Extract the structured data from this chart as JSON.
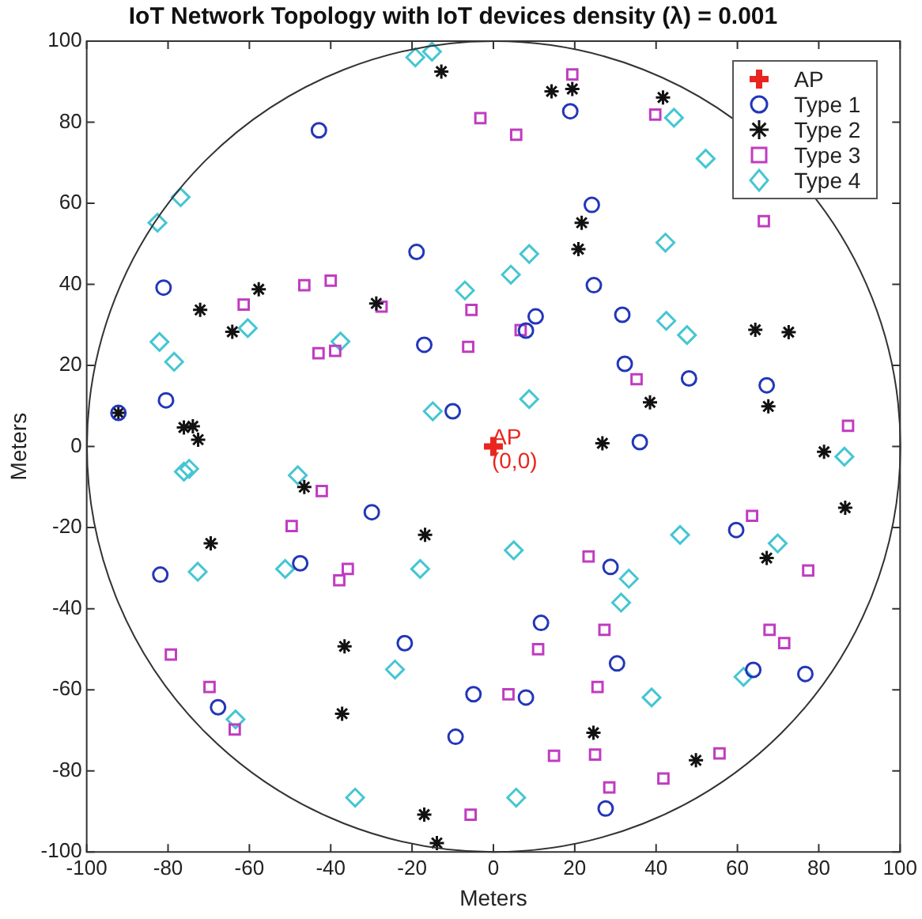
{
  "chart_data": {
    "type": "scatter",
    "title": "IoT Network Topology with IoT devices density (λ) = 0.001",
    "xlabel": "Meters",
    "ylabel": "Meters",
    "xlim": [
      -100,
      100
    ],
    "ylim": [
      -100,
      100
    ],
    "xticks": [
      -100,
      -80,
      -60,
      -40,
      -20,
      0,
      20,
      40,
      60,
      80,
      100
    ],
    "yticks": [
      -100,
      -80,
      -60,
      -40,
      -20,
      0,
      20,
      40,
      60,
      80,
      100
    ],
    "grid": false,
    "legend": "top right",
    "annotations": [
      {
        "text": "AP\n(0,0)",
        "x": 0,
        "y": 0
      }
    ],
    "series": [
      {
        "name": "AP",
        "color": "#e8261f",
        "marker": "cross",
        "x": [
          0
        ],
        "values": [
          0
        ]
      },
      {
        "name": "Type 1",
        "color": "#2336b8",
        "marker": "circle",
        "x": [
          -42.9,
          -18.9,
          -81.1,
          -17.0,
          -80.5,
          -10.0,
          -92.2,
          18.9,
          24.2,
          24.7,
          10.4,
          8.0,
          31.7,
          32.3,
          48.1,
          67.2,
          36.0,
          -29.9,
          -47.5,
          -81.9,
          -21.8,
          -4.9,
          -9.3,
          -67.7,
          59.7,
          28.8,
          11.7,
          30.4,
          63.9,
          76.7,
          8.0,
          27.6
        ],
        "values": [
          78.0,
          48.0,
          39.2,
          25.1,
          11.4,
          8.7,
          8.3,
          82.7,
          59.6,
          39.8,
          32.1,
          28.6,
          32.5,
          20.4,
          16.8,
          15.1,
          1.1,
          -16.2,
          -28.8,
          -31.6,
          -48.5,
          -61.1,
          -71.6,
          -64.3,
          -20.6,
          -29.7,
          -43.5,
          -53.5,
          -55.1,
          -56.1,
          -61.9,
          -89.3
        ]
      },
      {
        "name": "Type 2",
        "color": "#111111",
        "x": [
          -12.8,
          -57.7,
          -72.1,
          -64.2,
          -28.8,
          -76.1,
          -73.9,
          -72.6,
          -92.2,
          14.3,
          19.4,
          41.7,
          21.7,
          20.9,
          64.4,
          72.6,
          38.5,
          67.6,
          26.8,
          81.3,
          -46.5,
          -16.8,
          -69.5,
          -36.6,
          -37.2,
          -17.0,
          -13.9,
          86.5,
          67.2,
          24.6,
          49.8
        ],
        "values": [
          92.5,
          38.8,
          33.7,
          28.3,
          35.3,
          4.7,
          5.0,
          1.7,
          8.3,
          87.6,
          88.2,
          86.1,
          55.2,
          48.7,
          28.8,
          28.2,
          10.9,
          9.9,
          0.8,
          -1.3,
          -10.0,
          -21.8,
          -23.9,
          -49.3,
          -65.9,
          -90.8,
          -97.8,
          -15.1,
          -27.5,
          -70.6,
          -77.4
        ]
      },
      {
        "name": "Type 3",
        "color": "#c03cc0",
        "marker": "square",
        "x": [
          -3.2,
          -61.4,
          -46.5,
          -40.0,
          -27.5,
          -5.4,
          -43.0,
          -38.9,
          -6.2,
          19.4,
          5.6,
          39.8,
          66.5,
          6.7,
          35.2,
          87.2,
          -42.2,
          -49.6,
          -35.8,
          -37.9,
          -79.3,
          -69.8,
          -63.6,
          -5.6,
          63.6,
          23.4,
          77.4,
          27.3,
          11.0,
          67.9,
          71.5,
          25.6,
          3.7,
          14.9,
          25.0,
          28.5,
          41.8,
          55.6
        ],
        "values": [
          81.0,
          35.0,
          39.8,
          40.9,
          34.5,
          33.7,
          23.0,
          23.6,
          24.6,
          91.8,
          76.9,
          81.9,
          55.6,
          28.7,
          16.6,
          5.1,
          -11.0,
          -19.6,
          -30.2,
          -33.0,
          -51.3,
          -59.3,
          -69.8,
          -90.8,
          -17.1,
          -27.1,
          -30.6,
          -45.2,
          -50.0,
          -45.2,
          -48.5,
          -59.3,
          -61.1,
          -76.3,
          -76.0,
          -84.1,
          -81.9,
          -75.7
        ]
      },
      {
        "name": "Type 4",
        "color": "#45c6d2",
        "marker": "diamond",
        "x": [
          -19.2,
          -15.1,
          -76.9,
          -82.6,
          -7.0,
          -60.4,
          -37.6,
          -82.1,
          -78.5,
          -14.9,
          44.4,
          52.2,
          42.3,
          8.8,
          4.3,
          42.5,
          47.6,
          8.8,
          86.3,
          -76.1,
          -74.8,
          -48.1,
          -72.7,
          -51.2,
          -18.0,
          -24.2,
          -63.4,
          -34.0,
          5.0,
          45.9,
          69.9,
          33.3,
          31.4,
          61.5,
          38.9,
          5.6
        ],
        "values": [
          96.0,
          97.4,
          61.5,
          55.2,
          38.5,
          29.2,
          25.9,
          25.8,
          20.9,
          8.7,
          81.1,
          71.0,
          50.3,
          47.5,
          42.4,
          31.0,
          27.5,
          11.7,
          -2.5,
          -6.2,
          -5.5,
          -7.1,
          -30.9,
          -30.2,
          -30.2,
          -55.0,
          -67.3,
          -86.6,
          -25.6,
          -21.8,
          -23.9,
          -32.6,
          -38.5,
          -56.8,
          -61.9,
          -86.6
        ]
      }
    ]
  }
}
